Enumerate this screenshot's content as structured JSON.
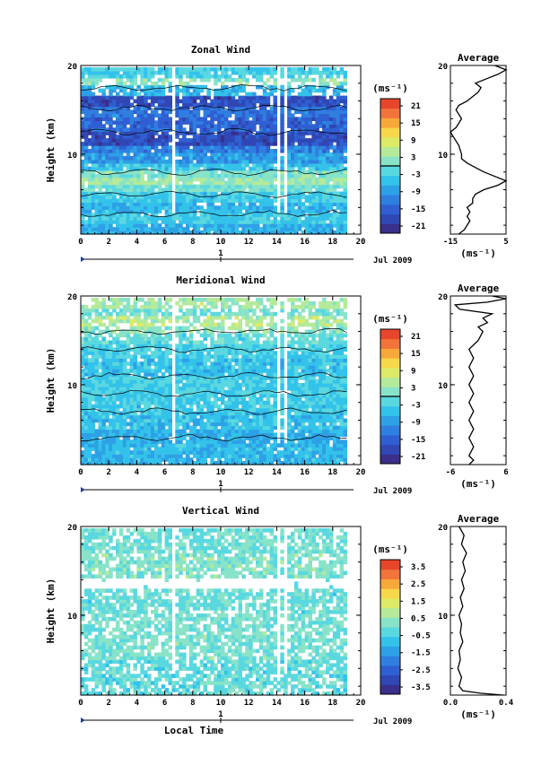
{
  "chart_data": [
    {
      "type": "heatmap",
      "title": "Zonal Wind",
      "ylabel": "Height (km)",
      "xlim": [
        0,
        20
      ],
      "ylim": [
        1,
        20
      ],
      "x_ticks": [
        0,
        2,
        4,
        6,
        8,
        10,
        12,
        14,
        16,
        18,
        20
      ],
      "y_ticks": [
        20,
        10
      ],
      "date_label": "Jul 2009",
      "day_marker": "1",
      "colorbar": {
        "unit": "(ms⁻¹)",
        "ticks": [
          "21",
          "15",
          "9",
          "3",
          "-3",
          "-9",
          "-15",
          "-21"
        ],
        "range": [
          -24,
          24
        ],
        "marker": 0
      },
      "bands": [
        {
          "y0": 1,
          "y1": 2,
          "value": -7
        },
        {
          "y0": 2,
          "y1": 3.3,
          "value": -4
        },
        {
          "y0": 3.3,
          "y1": 4.5,
          "value": -6
        },
        {
          "y0": 4.5,
          "y1": 5.5,
          "value": -4
        },
        {
          "y0": 5.5,
          "y1": 6.3,
          "value": 0
        },
        {
          "y0": 6.3,
          "y1": 7.3,
          "value": 4
        },
        {
          "y0": 7.3,
          "y1": 8,
          "value": 1
        },
        {
          "y0": 8,
          "y1": 9,
          "value": -5
        },
        {
          "y0": 9,
          "y1": 10,
          "value": -9
        },
        {
          "y0": 10,
          "y1": 11,
          "value": -12
        },
        {
          "y0": 11,
          "y1": 12.5,
          "value": -18
        },
        {
          "y0": 12.5,
          "y1": 14,
          "value": -15
        },
        {
          "y0": 14,
          "y1": 15.2,
          "value": -13
        },
        {
          "y0": 15.2,
          "y1": 16.4,
          "value": -18
        },
        {
          "y0": 16.4,
          "y1": 17.5,
          "value": -6
        },
        {
          "y0": 17.5,
          "y1": 18.3,
          "value": 2
        },
        {
          "y0": 18.3,
          "y1": 19,
          "value": -3
        }
      ],
      "average": {
        "title": "Average",
        "xlabel": "(ms⁻¹)",
        "xlim": [
          -15,
          5
        ],
        "x_ticks": [
          "-15",
          "5"
        ],
        "y_ticks": [
          "20",
          "10"
        ],
        "profile": [
          [
            -12,
            1
          ],
          [
            -10,
            1.5
          ],
          [
            -9,
            2
          ],
          [
            -8,
            2.5
          ],
          [
            -9,
            3
          ],
          [
            -8,
            3.5
          ],
          [
            -9,
            4
          ],
          [
            -7,
            4.5
          ],
          [
            -7,
            5
          ],
          [
            -6,
            5.5
          ],
          [
            -3,
            6
          ],
          [
            2,
            6.5
          ],
          [
            5,
            7
          ],
          [
            1,
            7.5
          ],
          [
            -3,
            8
          ],
          [
            -6,
            8.5
          ],
          [
            -9,
            9
          ],
          [
            -11,
            9.5
          ],
          [
            -11,
            10
          ],
          [
            -12,
            11
          ],
          [
            -14,
            12
          ],
          [
            -15,
            12.5
          ],
          [
            -13,
            13
          ],
          [
            -11,
            14
          ],
          [
            -13,
            15
          ],
          [
            -12,
            15.5
          ],
          [
            -9,
            16
          ],
          [
            -7,
            16.5
          ],
          [
            -5,
            17
          ],
          [
            -4,
            17.5
          ],
          [
            -6,
            18
          ],
          [
            -2,
            18.5
          ],
          [
            2,
            19
          ],
          [
            5,
            19.5
          ],
          [
            1,
            20
          ]
        ]
      }
    },
    {
      "type": "heatmap",
      "title": "Meridional Wind",
      "ylabel": "Height (km)",
      "xlim": [
        0,
        20
      ],
      "ylim": [
        1,
        20
      ],
      "x_ticks": [
        0,
        2,
        4,
        6,
        8,
        10,
        12,
        14,
        16,
        18,
        20
      ],
      "y_ticks": [
        20,
        10
      ],
      "date_label": "Jul 2009",
      "day_marker": "1",
      "colorbar": {
        "unit": "(ms⁻¹)",
        "ticks": [
          "21",
          "15",
          "9",
          "3",
          "-3",
          "-9",
          "-15",
          "-21"
        ],
        "range": [
          -24,
          24
        ],
        "marker": 0
      },
      "bands": [
        {
          "y0": 1,
          "y1": 3,
          "value": -6
        },
        {
          "y0": 3,
          "y1": 5,
          "value": -7
        },
        {
          "y0": 5,
          "y1": 7,
          "value": -5
        },
        {
          "y0": 7,
          "y1": 9,
          "value": -4
        },
        {
          "y0": 9,
          "y1": 11,
          "value": -3
        },
        {
          "y0": 11,
          "y1": 13,
          "value": -5
        },
        {
          "y0": 13,
          "y1": 14.5,
          "value": -3
        },
        {
          "y0": 14.5,
          "y1": 15.5,
          "value": -1
        },
        {
          "y0": 15.5,
          "y1": 16.5,
          "value": 2
        },
        {
          "y0": 16.5,
          "y1": 17.5,
          "value": 5
        },
        {
          "y0": 17.5,
          "y1": 18.5,
          "value": 0
        },
        {
          "y0": 18.5,
          "y1": 19.5,
          "value": 4
        }
      ],
      "average": {
        "title": "Average",
        "xlabel": "(ms⁻¹)",
        "xlim": [
          -6,
          6
        ],
        "x_ticks": [
          "-6",
          "6"
        ],
        "y_ticks": [
          "20",
          "10"
        ],
        "profile": [
          [
            -2,
            1
          ],
          [
            -1,
            1.5
          ],
          [
            -2,
            2
          ],
          [
            -1,
            3
          ],
          [
            -2,
            4
          ],
          [
            -1,
            5
          ],
          [
            -2,
            6
          ],
          [
            -1,
            7
          ],
          [
            -2,
            8
          ],
          [
            -1,
            9
          ],
          [
            -2,
            10
          ],
          [
            -1,
            11
          ],
          [
            -2,
            12
          ],
          [
            -1,
            13
          ],
          [
            -2,
            14
          ],
          [
            0,
            15
          ],
          [
            1,
            16
          ],
          [
            0,
            16.5
          ],
          [
            2,
            17
          ],
          [
            1,
            17.5
          ],
          [
            3,
            18
          ],
          [
            -4,
            18.5
          ],
          [
            -5,
            19
          ],
          [
            2,
            19.3
          ],
          [
            6,
            19.7
          ],
          [
            3,
            20
          ]
        ]
      }
    },
    {
      "type": "heatmap",
      "title": "Vertical Wind",
      "ylabel": "Height (km)",
      "xlabel": "Local Time",
      "xlim": [
        0,
        20
      ],
      "ylim": [
        1,
        20
      ],
      "x_ticks": [
        0,
        2,
        4,
        6,
        8,
        10,
        12,
        14,
        16,
        18,
        20
      ],
      "y_ticks": [
        20,
        10
      ],
      "date_label": "Jul 2009",
      "day_marker": "1",
      "colorbar": {
        "unit": "(ms⁻¹)",
        "ticks": [
          "3.5",
          "2.5",
          "1.5",
          "0.5",
          "-0.5",
          "-1.5",
          "-2.5",
          "-3.5"
        ],
        "range": [
          -4,
          4
        ],
        "marker": null
      },
      "bands": [
        {
          "y0": 1,
          "y1": 5,
          "value": -0.2
        },
        {
          "y0": 5,
          "y1": 10,
          "value": 0.1
        },
        {
          "y0": 10,
          "y1": 14,
          "value": -0.1
        },
        {
          "y0": 14,
          "y1": 17,
          "value": 0.2
        },
        {
          "y0": 17,
          "y1": 20,
          "value": 0.0
        }
      ],
      "average": {
        "title": "Average",
        "xlabel": "(ms⁻¹)",
        "xlim": [
          -0.05,
          0.4
        ],
        "x_ticks": [
          "0.0",
          "0.4"
        ],
        "y_ticks": [
          "20",
          "10"
        ],
        "profile": [
          [
            0.38,
            1
          ],
          [
            0.2,
            1.2
          ],
          [
            0.05,
            1.5
          ],
          [
            0.02,
            2
          ],
          [
            0.04,
            3
          ],
          [
            0.01,
            4
          ],
          [
            0.03,
            5
          ],
          [
            0.02,
            6
          ],
          [
            0.05,
            7
          ],
          [
            0.03,
            8
          ],
          [
            0.04,
            9
          ],
          [
            0.02,
            10
          ],
          [
            0.05,
            11
          ],
          [
            0.03,
            12
          ],
          [
            0.06,
            13
          ],
          [
            0.04,
            14
          ],
          [
            0.07,
            15
          ],
          [
            0.05,
            16
          ],
          [
            0.08,
            17
          ],
          [
            0.04,
            18
          ],
          [
            0.06,
            19
          ],
          [
            0.02,
            20
          ]
        ]
      }
    }
  ]
}
